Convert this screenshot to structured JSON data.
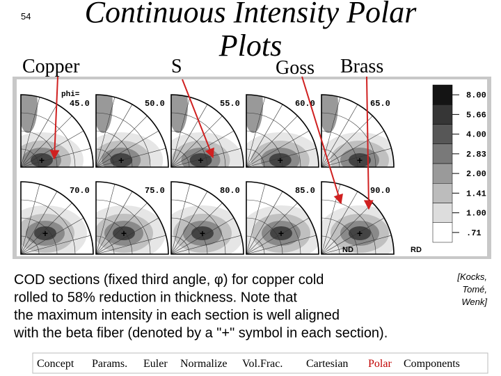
{
  "page_number": "54",
  "title": {
    "line1": "Continuous Intensity Polar",
    "line2": "Plots"
  },
  "labels": [
    "Copper",
    "S",
    "Goss",
    "Brass"
  ],
  "figure": {
    "phi_label": "phi=",
    "sections": [
      "45.0",
      "50.0",
      "55.0",
      "60.0",
      "65.0",
      "70.0",
      "75.0",
      "80.0",
      "85.0",
      "90.0"
    ],
    "legend": [
      "8.00",
      "5.66",
      "4.00",
      "2.83",
      "2.00",
      "1.41",
      "1.00",
      ".71"
    ],
    "axis_labels": [
      "ND",
      "RD"
    ]
  },
  "caption": {
    "lines": [
      "COD sections (fixed third angle, φ) for copper cold",
      "rolled to 58% reduction in thickness.  Note that",
      "the maximum intensity in each section is well aligned",
      "with the beta fiber (denoted by a \"+\" symbol in each section)."
    ]
  },
  "citation": [
    "[Kocks,",
    "Tomé,",
    "Wenk]"
  ],
  "nav": [
    "Concept",
    "Params.",
    "Euler",
    "Normalize",
    "Vol.Frac.",
    "Cartesian",
    "Polar",
    "Components"
  ]
}
